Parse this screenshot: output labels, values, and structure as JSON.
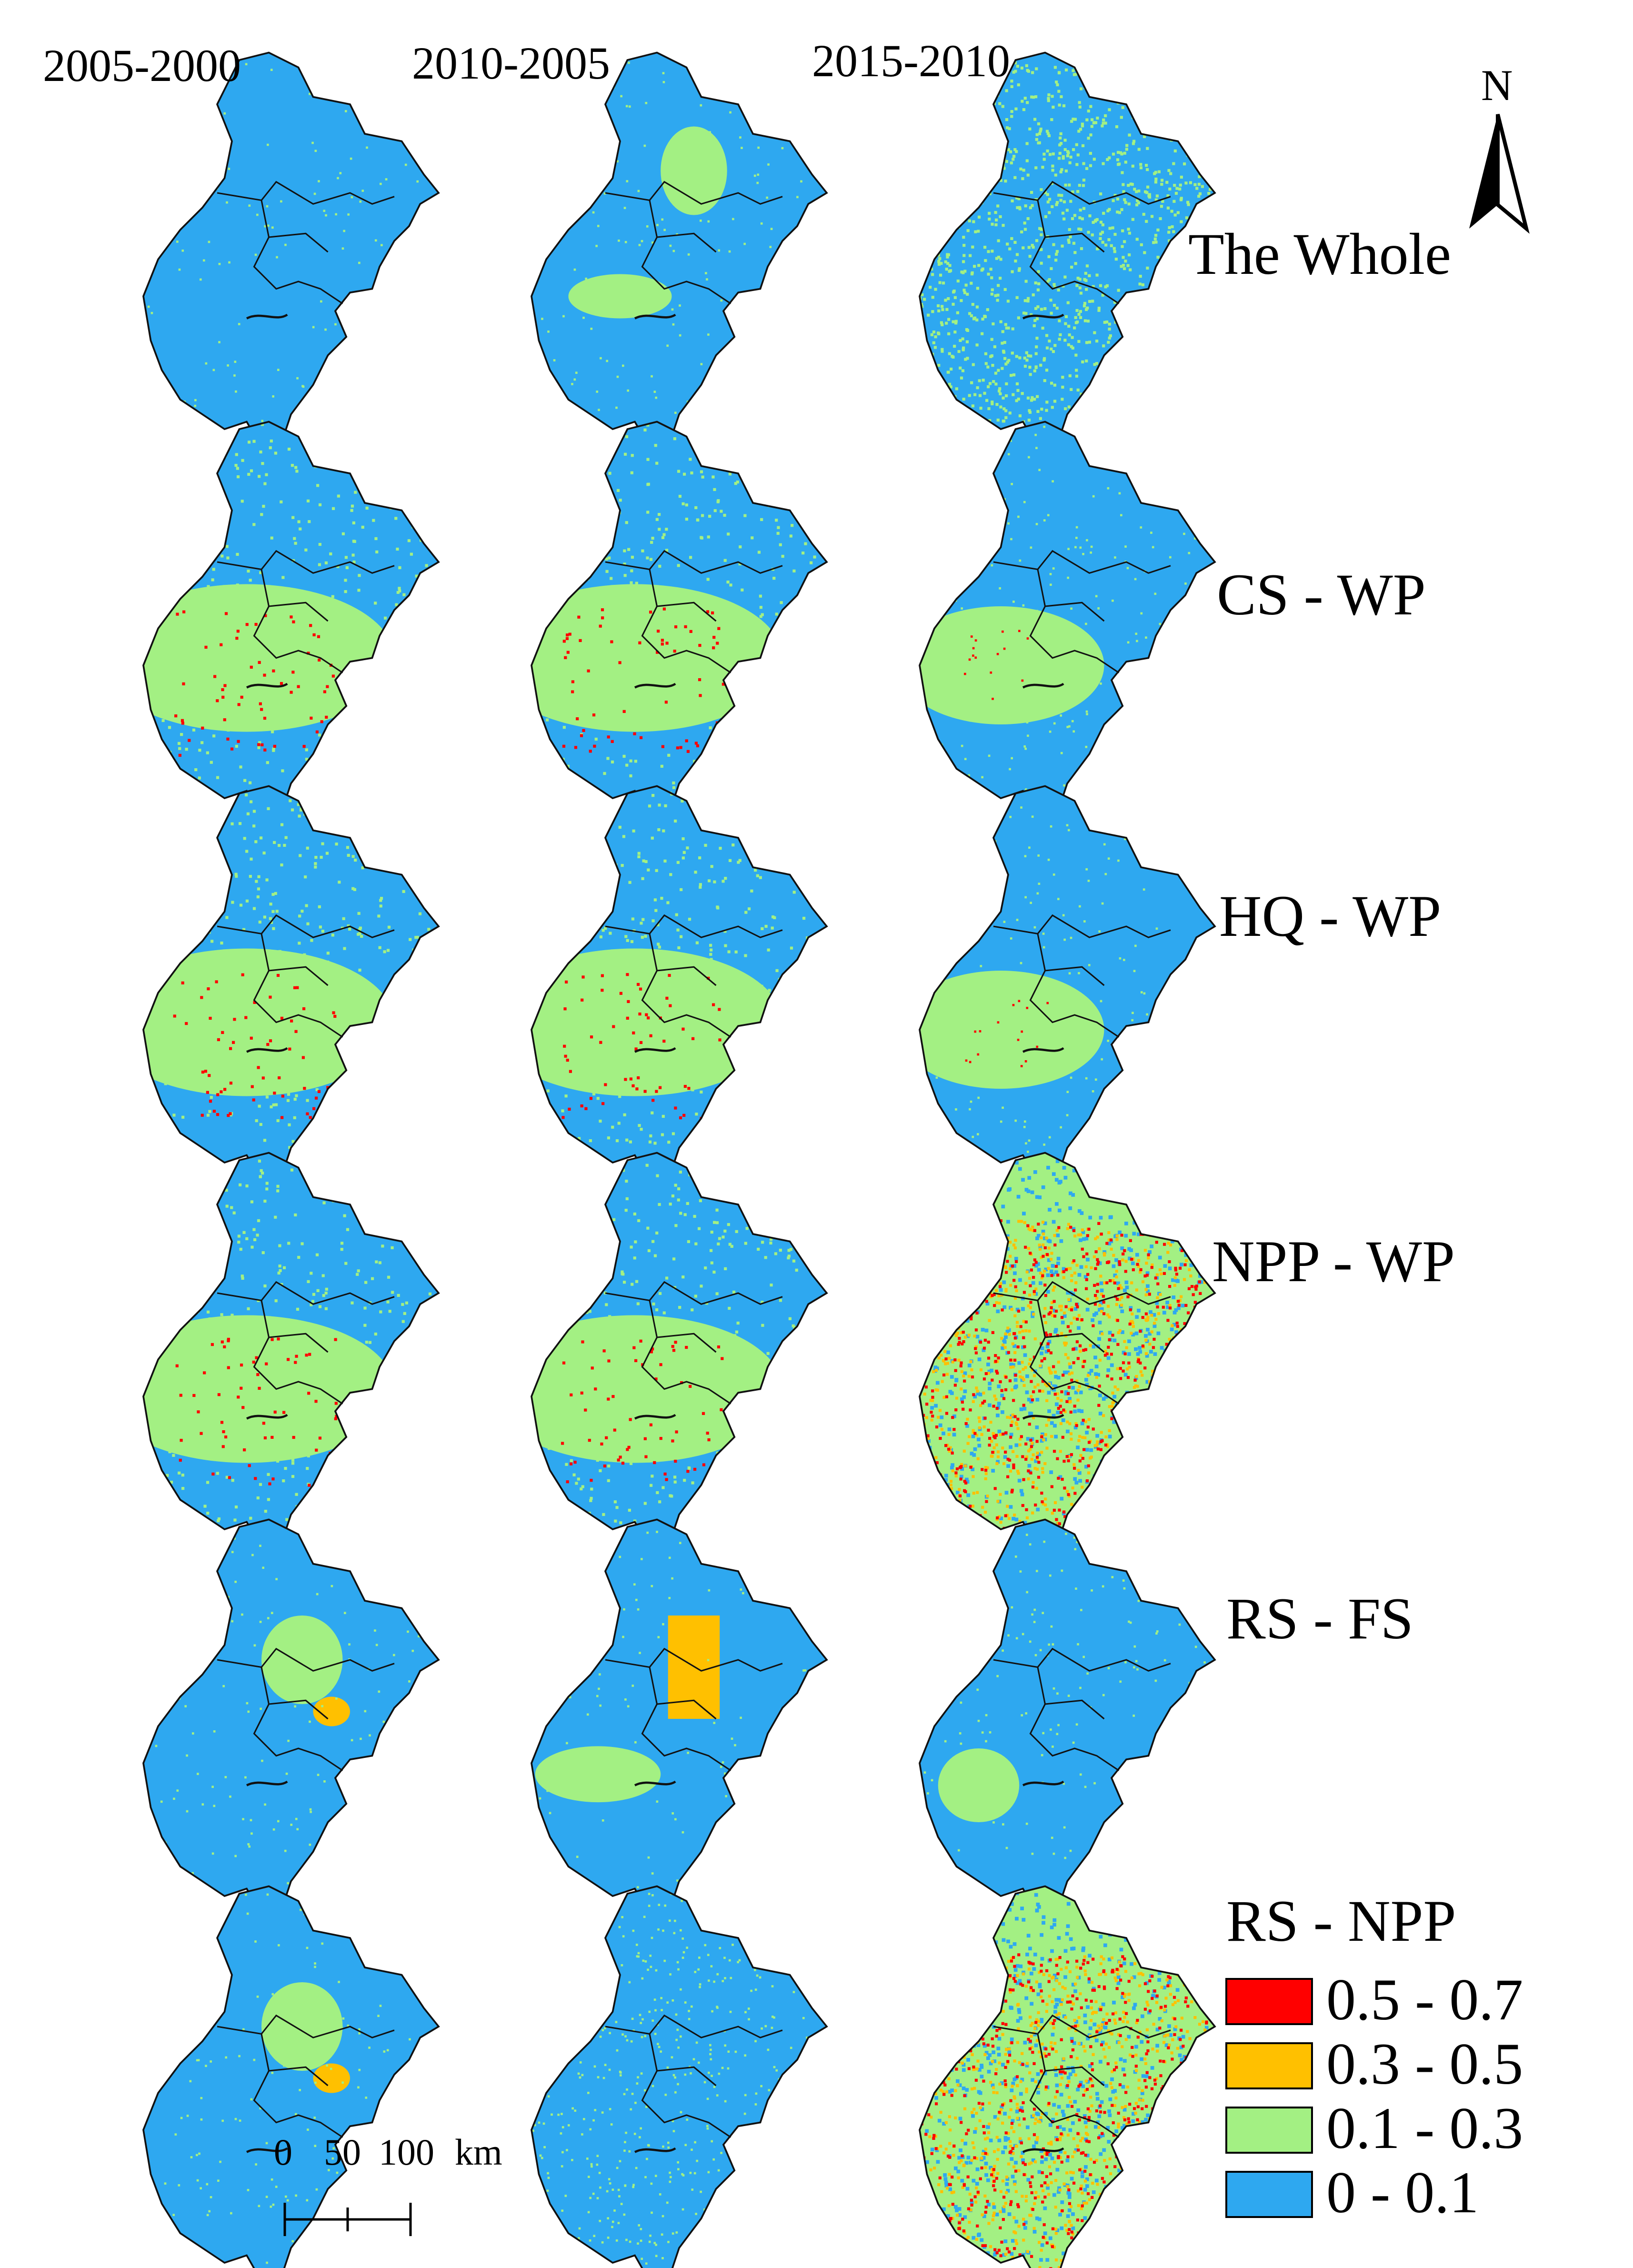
{
  "columns": [
    {
      "label": "2005-2000"
    },
    {
      "label": "2010-2005"
    },
    {
      "label": "2015-2010"
    }
  ],
  "rows": [
    {
      "label": "The Whole"
    },
    {
      "label": "CS - WP"
    },
    {
      "label": "HQ - WP"
    },
    {
      "label": "NPP - WP"
    },
    {
      "label": "RS - FS"
    },
    {
      "label": "RS - NPP"
    }
  ],
  "colors": {
    "class_0_0_1": "#2EA8F0",
    "class_0_1_0_3": "#A3F083",
    "class_0_3_0_5": "#FFC000",
    "class_0_5_0_7": "#FF0000",
    "boundary": "#111111"
  },
  "legend": {
    "items": [
      {
        "label": "0.5 - 0.7",
        "color": "#FF0000"
      },
      {
        "label": "0.3 - 0.5",
        "color": "#FFC000"
      },
      {
        "label": "0.1 - 0.3",
        "color": "#A3F083"
      },
      {
        "label": "0 - 0.1",
        "color": "#2EA8F0"
      }
    ]
  },
  "north_arrow": {
    "letter": "N"
  },
  "scale_bar": {
    "ticks": [
      "0",
      "50",
      "100"
    ],
    "unit": "km"
  },
  "map_patterns": [
    [
      "blue",
      "blue-green-north",
      "mixed"
    ],
    [
      "green-mid",
      "green-mid",
      "green-center"
    ],
    [
      "green-mid",
      "green-mid",
      "green-center"
    ],
    [
      "green-mid",
      "green-mid",
      "red-dense"
    ],
    [
      "green-north",
      "orange-north",
      "green-sw"
    ],
    [
      "green-north",
      "blue-speckle",
      "red-dense"
    ]
  ]
}
